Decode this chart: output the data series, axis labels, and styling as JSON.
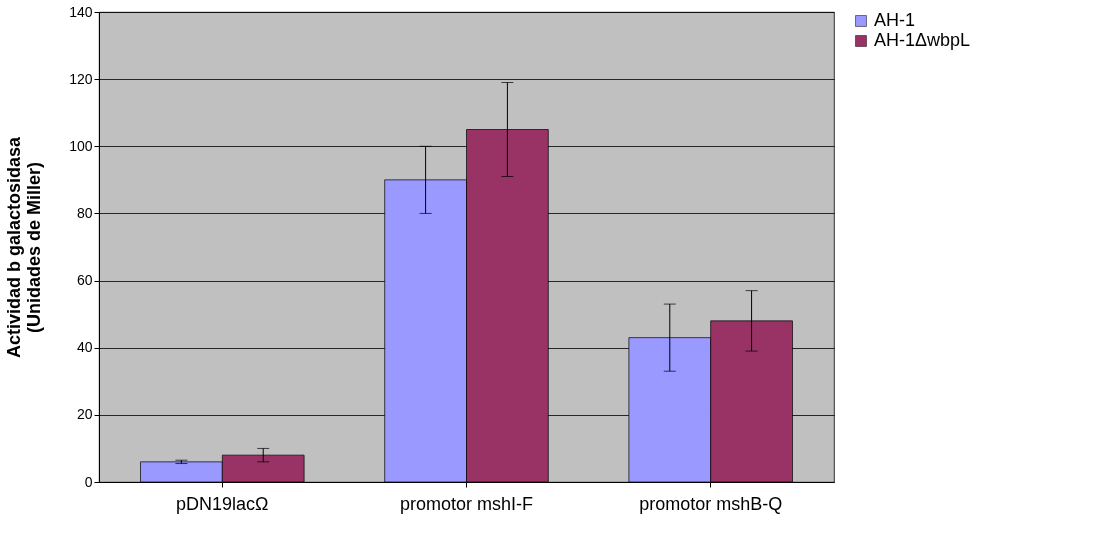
{
  "chart_data": {
    "type": "bar",
    "ylabel": "Actividad b galactosidasa\n(Unidades de Miller)",
    "categories": [
      "pDN19lacΩ",
      "promotor mshI-F",
      "promotor mshB-Q"
    ],
    "series": [
      {
        "name": "AH-1",
        "color": "#9999ff",
        "values": [
          6,
          90,
          43
        ],
        "errors": [
          0.5,
          10,
          [
            33,
            53
          ]
        ]
      },
      {
        "name": "AH-1ΔwbpL",
        "color": "#993366",
        "values": [
          8,
          105,
          48
        ],
        "errors": [
          2,
          [
            91,
            119
          ],
          [
            39,
            57
          ]
        ]
      }
    ],
    "ylim": [
      0,
      140
    ],
    "yticks": [
      0,
      20,
      40,
      60,
      80,
      100,
      120,
      140
    ],
    "grid": "y",
    "legend": "right"
  }
}
